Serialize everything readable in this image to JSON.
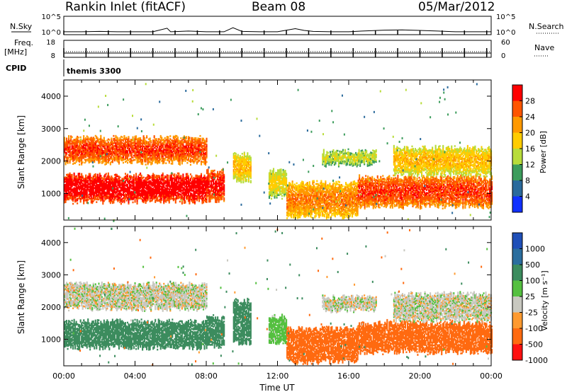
{
  "header": {
    "station": "Rankin Inlet (fitACF)",
    "beam": "Beam 08",
    "date": "05/Mar/2012"
  },
  "chart_data": [
    {
      "type": "line",
      "panel": "noise",
      "left_label": "N.Sky",
      "right_label": "N.Search",
      "y_ticks_left": [
        "10^5",
        "10^0"
      ],
      "y_ticks_right": [
        "10^5",
        "10^0"
      ],
      "series": [
        {
          "name": "N.Sky",
          "x": [
            0,
            1,
            2,
            3,
            4,
            5,
            5.8,
            6,
            7,
            8,
            9,
            9.5,
            10,
            11,
            12,
            13,
            13.5,
            14,
            15,
            16,
            17,
            18,
            19,
            20,
            21,
            22,
            23,
            24
          ],
          "values": [
            3,
            3,
            4,
            3,
            3,
            3,
            40,
            3,
            5,
            3,
            3,
            60,
            4,
            3,
            3,
            30,
            8,
            4,
            3,
            3,
            6,
            10,
            12,
            8,
            5,
            3,
            3,
            3
          ]
        }
      ]
    },
    {
      "type": "line",
      "panel": "frequency",
      "left_label": "Freq.",
      "left_unit": "[MHz]",
      "right_label": "Nave",
      "y_ticks_left": [
        "18",
        "8"
      ],
      "y_ticks_right": [
        "60",
        "0"
      ],
      "series": [
        {
          "name": "Freq.",
          "x": [
            0,
            24
          ],
          "values": [
            10.5,
            10.5
          ]
        },
        {
          "name": "Nave",
          "x": [
            0,
            24
          ],
          "values": [
            20,
            20
          ]
        }
      ]
    },
    {
      "type": "table",
      "panel": "cpid",
      "label": "CPID",
      "value": "themis 3300"
    },
    {
      "type": "heatmap",
      "panel": "power",
      "ylabel": "Slant Range [km]",
      "ylim": [
        180,
        4500
      ],
      "y_ticks": [
        1000,
        2000,
        3000,
        4000
      ],
      "xlim": [
        0,
        24
      ],
      "colorbar": {
        "label": "Power [dB]",
        "ticks": [
          28,
          24,
          20,
          16,
          12,
          8,
          4
        ],
        "colors": [
          "#ff0000",
          "#ff5500",
          "#ff9900",
          "#ffcc00",
          "#b8dc3a",
          "#3c9c5c",
          "#2a6a9c",
          "#1030ff"
        ]
      },
      "bands": [
        {
          "x": [
            0.0,
            8.0
          ],
          "range": [
            1950,
            2700
          ],
          "power": 22
        },
        {
          "x": [
            0.0,
            8.0
          ],
          "range": [
            750,
            1550
          ],
          "power": 26
        },
        {
          "x": [
            8.0,
            9.0
          ],
          "range": [
            800,
            1700
          ],
          "power": 24
        },
        {
          "x": [
            9.5,
            10.5
          ],
          "range": [
            1400,
            2200
          ],
          "power": 14
        },
        {
          "x": [
            11.5,
            12.5
          ],
          "range": [
            900,
            1700
          ],
          "power": 12
        },
        {
          "x": [
            12.5,
            16.5
          ],
          "range": [
            300,
            1300
          ],
          "power": 18
        },
        {
          "x": [
            16.5,
            24.0
          ],
          "range": [
            600,
            1500
          ],
          "power": 22
        },
        {
          "x": [
            14.5,
            17.5
          ],
          "range": [
            1900,
            2300
          ],
          "power": 10
        },
        {
          "x": [
            18.5,
            24.0
          ],
          "range": [
            1600,
            2400
          ],
          "power": 14
        }
      ]
    },
    {
      "type": "heatmap",
      "panel": "velocity",
      "ylabel": "Slant Range [km]",
      "xlabel": "Time UT",
      "ylim": [
        180,
        4500
      ],
      "y_ticks": [
        1000,
        2000,
        3000,
        4000
      ],
      "x_ticks": [
        "00:00",
        "04:00",
        "08:00",
        "12:00",
        "16:00",
        "20:00",
        "00:00"
      ],
      "xlim": [
        0,
        24
      ],
      "colorbar": {
        "label": "Velocity [m s⁻¹]",
        "ticks": [
          "1000",
          "500",
          "100",
          "25",
          "-25",
          "-100",
          "-500",
          "-1000"
        ],
        "colors": [
          "#1f4fb8",
          "#2b6e9e",
          "#3c8c5e",
          "#55c040",
          "#c8c8c0",
          "#ff9a30",
          "#ff6a10",
          "#ff1010"
        ]
      },
      "bands": [
        {
          "x": [
            0.0,
            8.0
          ],
          "range": [
            1950,
            2700
          ],
          "velocity": 0
        },
        {
          "x": [
            0.0,
            8.0
          ],
          "range": [
            750,
            1550
          ],
          "velocity": 300
        },
        {
          "x": [
            8.0,
            9.0
          ],
          "range": [
            800,
            1700
          ],
          "velocity": 300
        },
        {
          "x": [
            9.5,
            10.5
          ],
          "range": [
            900,
            2200
          ],
          "velocity": 300
        },
        {
          "x": [
            11.5,
            12.5
          ],
          "range": [
            900,
            1700
          ],
          "velocity": 60
        },
        {
          "x": [
            12.5,
            16.5
          ],
          "range": [
            300,
            1300
          ],
          "velocity": -300
        },
        {
          "x": [
            16.5,
            24.0
          ],
          "range": [
            600,
            1500
          ],
          "velocity": -300
        },
        {
          "x": [
            14.5,
            17.5
          ],
          "range": [
            1900,
            2300
          ],
          "velocity": 0
        },
        {
          "x": [
            18.5,
            24.0
          ],
          "range": [
            1600,
            2400
          ],
          "velocity": 0
        }
      ]
    }
  ]
}
